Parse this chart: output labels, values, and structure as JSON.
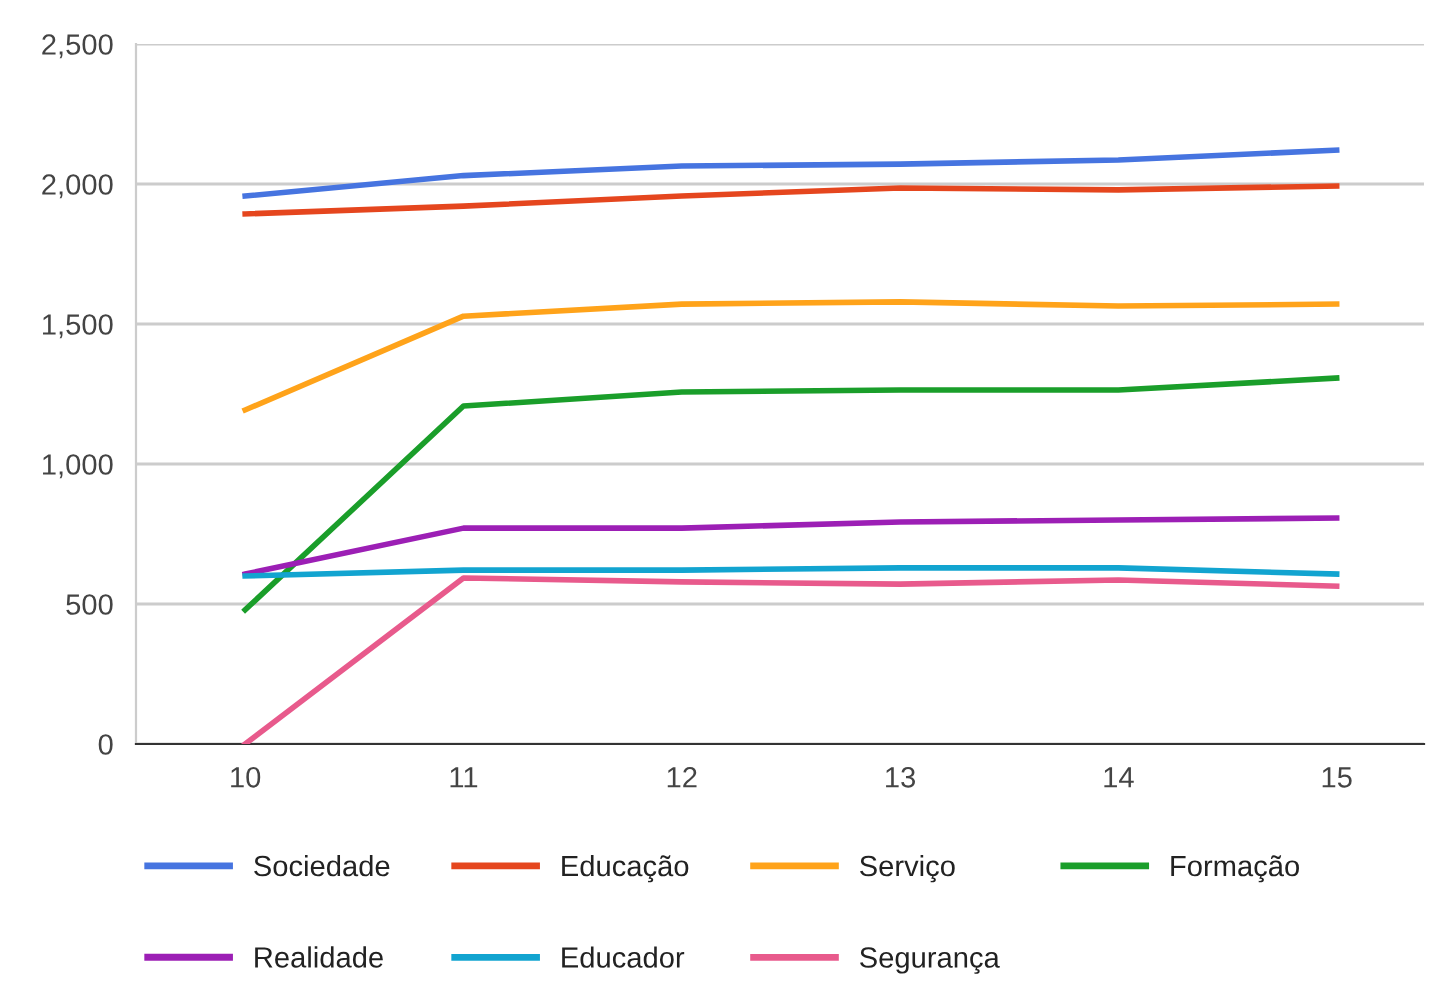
{
  "chart_data": {
    "type": "line",
    "x": [
      10,
      11,
      12,
      13,
      14,
      15
    ],
    "series": [
      {
        "name": "Sociedade",
        "color": "#4674e0",
        "values": [
          1957,
          2030,
          2064,
          2071,
          2086,
          2121
        ]
      },
      {
        "name": "Educação",
        "color": "#e5461e",
        "values": [
          1893,
          1921,
          1957,
          1986,
          1979,
          1993
        ]
      },
      {
        "name": "Serviço",
        "color": "#ffa31a",
        "values": [
          1193,
          1528,
          1571,
          1579,
          1564,
          1571
        ]
      },
      {
        "name": "Formação",
        "color": "#1a9e2a",
        "values": [
          479,
          1207,
          1257,
          1264,
          1264,
          1307
        ]
      },
      {
        "name": "Realidade",
        "color": "#9c1fb5",
        "values": [
          607,
          771,
          771,
          793,
          800,
          807
        ]
      },
      {
        "name": "Educador",
        "color": "#12a4d0",
        "values": [
          600,
          621,
          621,
          629,
          629,
          607
        ]
      },
      {
        "name": "Segurança",
        "color": "#e85a8c",
        "values": [
          0,
          593,
          579,
          571,
          586,
          564
        ]
      }
    ],
    "xlim": [
      9.5,
      15.4
    ],
    "xticks": [
      10,
      11,
      12,
      13,
      14,
      15
    ],
    "ylim": [
      0,
      2500
    ],
    "yticks": [
      {
        "value": 0,
        "label": "0"
      },
      {
        "value": 500,
        "label": "500"
      },
      {
        "value": 1000,
        "label": "1,000"
      },
      {
        "value": 1500,
        "label": "1,500"
      },
      {
        "value": 2000,
        "label": "2,000"
      },
      {
        "value": 2500,
        "label": "2,500"
      }
    ],
    "grid": "y",
    "legend": "bottom",
    "marker": "none",
    "line_style": "solid"
  }
}
